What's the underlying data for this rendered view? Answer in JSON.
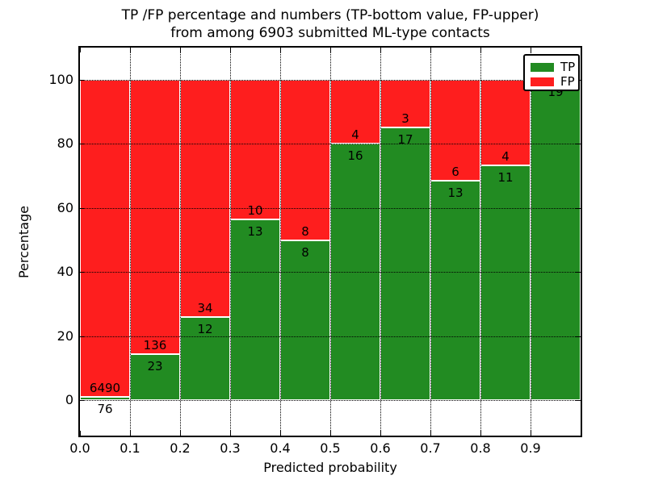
{
  "chart_data": {
    "type": "bar",
    "stacked": true,
    "title_line1": "TP /FP percentage and numbers (TP-bottom value, FP-upper)",
    "title_line2": "from among 6903 submitted ML-type contacts",
    "xlabel": "Predicted probability",
    "ylabel": "Percentage",
    "total_contacts": 6903,
    "x_tick_labels": [
      "0.0",
      "0.1",
      "0.2",
      "0.3",
      "0.4",
      "0.5",
      "0.6",
      "0.7",
      "0.8",
      "0.9"
    ],
    "y_ticks": [
      0,
      20,
      40,
      60,
      80,
      100
    ],
    "xlim": [
      0.0,
      1.0
    ],
    "ylim": [
      -11,
      110
    ],
    "bin_width": 0.1,
    "grid": true,
    "legend_position": "upper-right",
    "colors": {
      "tp": "#228b22",
      "fp": "#fe1e1e",
      "background": "#ffffff",
      "text": "#000000"
    },
    "legend": [
      {
        "label": "TP",
        "color": "#228b22"
      },
      {
        "label": "FP",
        "color": "#fe1e1e"
      }
    ],
    "bars": [
      {
        "bin_start": 0.0,
        "bin_end": 0.1,
        "tp": 76,
        "fp": 6490
      },
      {
        "bin_start": 0.1,
        "bin_end": 0.2,
        "tp": 23,
        "fp": 136
      },
      {
        "bin_start": 0.2,
        "bin_end": 0.3,
        "tp": 12,
        "fp": 34
      },
      {
        "bin_start": 0.3,
        "bin_end": 0.4,
        "tp": 13,
        "fp": 10
      },
      {
        "bin_start": 0.4,
        "bin_end": 0.5,
        "tp": 8,
        "fp": 8
      },
      {
        "bin_start": 0.5,
        "bin_end": 0.6,
        "tp": 16,
        "fp": 4
      },
      {
        "bin_start": 0.6,
        "bin_end": 0.7,
        "tp": 17,
        "fp": 3
      },
      {
        "bin_start": 0.7,
        "bin_end": 0.8,
        "tp": 13,
        "fp": 6
      },
      {
        "bin_start": 0.8,
        "bin_end": 0.9,
        "tp": 11,
        "fp": 4
      },
      {
        "bin_start": 0.9,
        "bin_end": 1.0,
        "tp": 19,
        "fp": 0
      }
    ]
  }
}
